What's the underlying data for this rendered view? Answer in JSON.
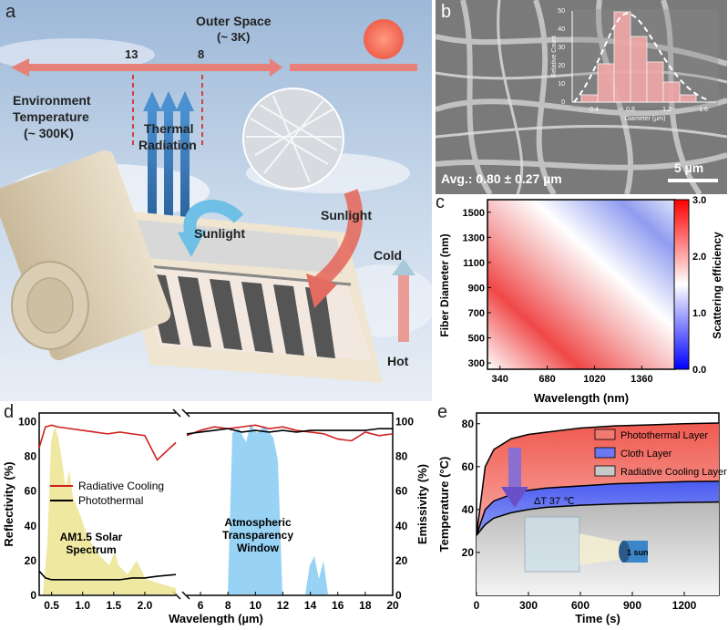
{
  "panels": {
    "a": "a",
    "b": "b",
    "c": "c",
    "d": "d",
    "e": "e"
  },
  "panel_a": {
    "outer_space": "Outer Space",
    "outer_temp": "(~ 3K)",
    "mark_13": "13",
    "mark_8": "8",
    "env1": "Environment",
    "env2": "Temperature",
    "env3": "(~ 300K)",
    "thermal1": "Thermal",
    "thermal2": "Radiation",
    "sunlight_left": "Sunlight",
    "sunlight_right": "Sunlight",
    "cold": "Cold",
    "hot": "Hot"
  },
  "panel_b": {
    "avg": "Avg.: 0.80 ± 0.27 µm",
    "scale": "5 µm",
    "inset_ylabel": "Relative Count",
    "inset_xlabel": "Diameter (µm)",
    "inset_xticks": [
      "0.4",
      "0.8",
      "1.2",
      "1.6"
    ],
    "inset_yticks": [
      "0",
      "10",
      "20",
      "30",
      "40",
      "50"
    ]
  },
  "panel_c": {
    "xlabel": "Wavelength (nm)",
    "ylabel": "Fiber Diameter (nm)",
    "cbar_label": "Scattering efficiency",
    "xticks": [
      "340",
      "680",
      "1020",
      "1360"
    ],
    "yticks": [
      "300",
      "500",
      "700",
      "900",
      "1100",
      "1300",
      "1500"
    ],
    "cticks": [
      "0.0",
      "1.0",
      "2.0",
      "3.0"
    ]
  },
  "panel_d": {
    "xlabel": "Wavelength (µm)",
    "ylabel_left": "Reflectivity (%)",
    "ylabel_right": "Emissivity (%)",
    "legend_red": "Radiative Cooling",
    "legend_black": "Photothermal",
    "am1": "AM1.5 Solar",
    "am2": "Spectrum",
    "atm1": "Atmospheric",
    "atm2": "Transparency",
    "atm3": "Window",
    "xticks_left": [
      "0.5",
      "1.0",
      "1.5",
      "2.0"
    ],
    "xticks_right": [
      "6",
      "8",
      "10",
      "12",
      "14",
      "16",
      "18",
      "20"
    ],
    "yticks": [
      "0",
      "20",
      "40",
      "60",
      "80",
      "100"
    ]
  },
  "panel_e": {
    "xlabel": "Time (s)",
    "ylabel": "Temperature (°C)",
    "legend": [
      "Photothermal Layer",
      "Cloth Layer",
      "Radiative Cooling Layer"
    ],
    "delta": "ΔT 37 ℃",
    "sun": "1 sun",
    "xticks": [
      "0",
      "300",
      "600",
      "900",
      "1200"
    ],
    "yticks": [
      "20",
      "40",
      "60",
      "80"
    ]
  },
  "chart_data": [
    {
      "type": "heatmap",
      "xlabel": "Wavelength (nm)",
      "ylabel": "Fiber Diameter (nm)",
      "xlim": [
        250,
        1600
      ],
      "ylim": [
        250,
        1600
      ],
      "colorbar_label": "Scattering efficiency",
      "clim": [
        0.0,
        3.0
      ]
    },
    {
      "type": "line",
      "xlabel": "Wavelength (µm)",
      "ylabel": "Reflectivity (%)",
      "ylabel_right": "Emissivity (%)",
      "ylim": [
        0,
        105
      ],
      "x_left": [
        0.3,
        0.4,
        0.5,
        0.6,
        0.8,
        1.0,
        1.2,
        1.4,
        1.6,
        1.8,
        2.0,
        2.2,
        2.5
      ],
      "x_right": [
        5,
        6,
        7,
        8,
        9,
        10,
        11,
        12,
        13,
        14,
        15,
        16,
        17,
        18,
        19,
        20
      ],
      "series": [
        {
          "name": "Radiative Cooling",
          "left": [
            85,
            97,
            98,
            97,
            96,
            95,
            94,
            93,
            94,
            93,
            92,
            78,
            88
          ],
          "right": [
            92,
            95,
            97,
            96,
            97,
            98,
            96,
            97,
            95,
            94,
            93,
            90,
            89,
            94,
            92,
            93
          ]
        },
        {
          "name": "Photothermal",
          "left": [
            14,
            10,
            9,
            9,
            9,
            9,
            9,
            9,
            9,
            10,
            10,
            11,
            12
          ],
          "right": [
            93,
            94,
            95,
            96,
            94,
            95,
            94,
            95,
            94,
            95,
            95,
            95,
            95,
            95,
            96,
            96
          ]
        }
      ]
    },
    {
      "type": "area",
      "xlabel": "Time (s)",
      "ylabel": "Temperature (°C)",
      "xlim": [
        0,
        1400
      ],
      "ylim": [
        0,
        85
      ],
      "x": [
        0,
        50,
        100,
        200,
        300,
        400,
        600,
        800,
        1000,
        1200,
        1400
      ],
      "series": [
        {
          "name": "Photothermal Layer",
          "values": [
            28,
            60,
            68,
            73,
            75,
            76,
            78,
            79,
            79.5,
            80,
            80.3
          ]
        },
        {
          "name": "Cloth Layer",
          "values": [
            28,
            40,
            44,
            47,
            49,
            50,
            51,
            52,
            52.5,
            53,
            53.2
          ]
        },
        {
          "name": "Radiative Cooling Layer",
          "values": [
            28,
            33,
            36,
            38.5,
            40,
            41,
            42,
            42.6,
            43,
            43.3,
            43.5
          ]
        }
      ]
    }
  ]
}
